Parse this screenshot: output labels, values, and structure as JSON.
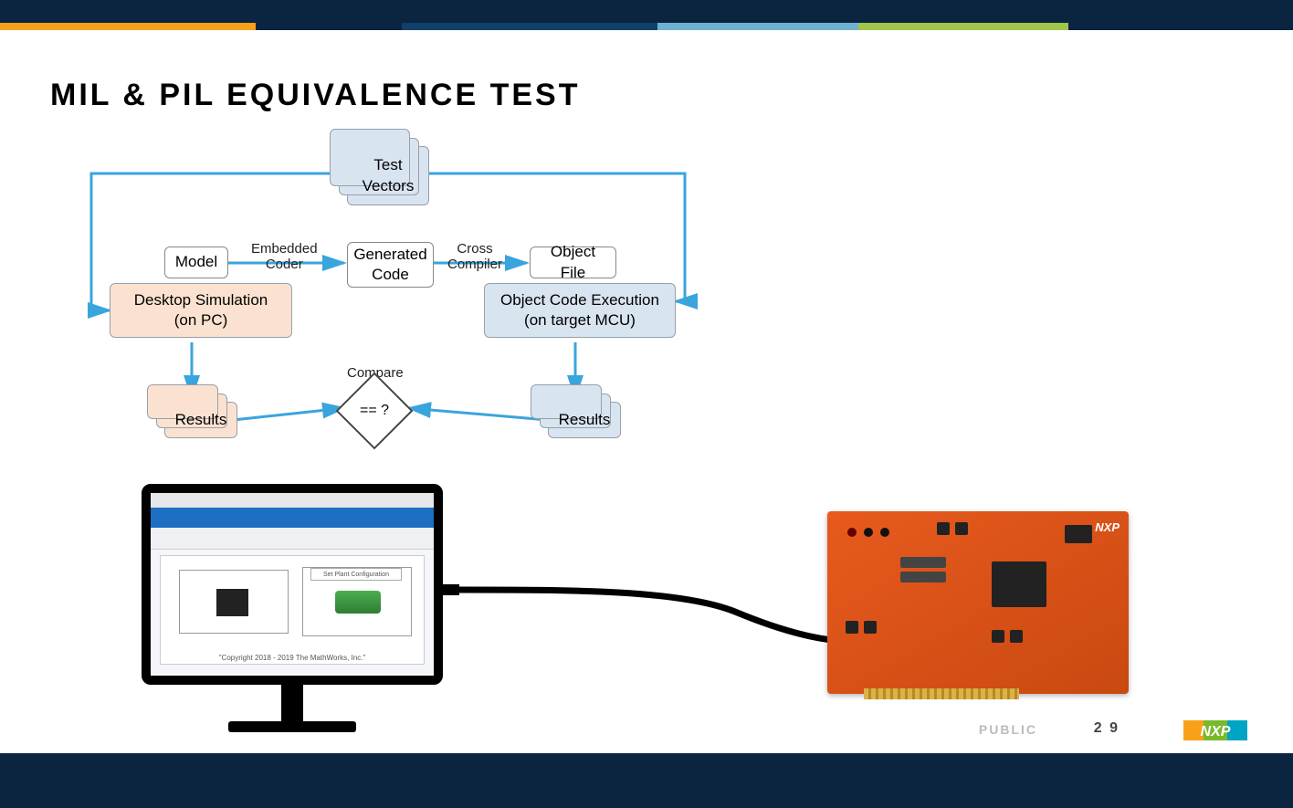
{
  "title": "MIL & PIL EQUIVALENCE TEST",
  "footer": {
    "public_label": "PUBLIC",
    "page_number": "2 9",
    "logo_text": "NXP"
  },
  "accent_colors": [
    "#f9a01b",
    "#0b2440",
    "#10406b",
    "#6fb1d0",
    "#9fc54a",
    "#0b2440"
  ],
  "accent_widths": [
    280,
    160,
    280,
    220,
    230,
    246
  ],
  "flowchart": {
    "arrow_color": "#3aa4dd",
    "nodes": {
      "test_vectors": "Test\nVectors",
      "model": "Model",
      "desktop_sim": "Desktop Simulation\n(on PC)",
      "gen_code": "Generated\nCode",
      "obj_file": "Object File",
      "obj_exec": "Object Code Execution\n(on target MCU)",
      "results_left": "Results",
      "results_right": "Results",
      "compare_label": "Compare",
      "compare_symbol": "== ?"
    },
    "edges": {
      "embedded_coder": "Embedded\nCoder",
      "cross_compiler": "Cross\nCompiler"
    }
  },
  "monitor_caption": "\"Copyright 2018 - 2019 The MathWorks, Inc.\"",
  "board": {
    "color": "#e85a1e",
    "logo": "NXP"
  }
}
